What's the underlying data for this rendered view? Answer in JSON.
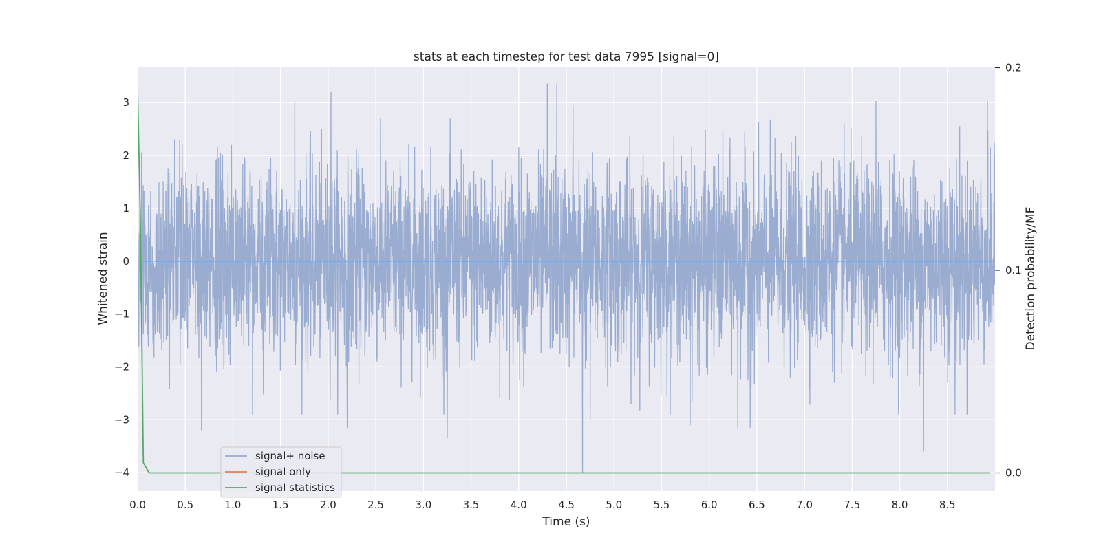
{
  "chart_data": {
    "type": "line",
    "title": "stats at each timestep for test data 7995 [signal=0]",
    "xlabel": "Time (s)",
    "ylabel_left": "Whitened strain",
    "ylabel_right": "Detection probability/MF",
    "xlim": [
      0.0,
      9.0
    ],
    "ylim_left": [
      -4.35,
      3.68
    ],
    "ylim_right": [
      -0.009,
      0.2005
    ],
    "x_ticks": [
      "0.0",
      "0.5",
      "1.0",
      "1.5",
      "2.0",
      "2.5",
      "3.0",
      "3.5",
      "4.0",
      "4.5",
      "5.0",
      "5.5",
      "6.0",
      "6.5",
      "7.0",
      "7.5",
      "8.0",
      "8.5"
    ],
    "y_ticks_left": [
      "3",
      "2",
      "1",
      "0",
      "−1",
      "−2",
      "−3",
      "−4"
    ],
    "y_ticks_right": [
      "0.2",
      "0.1",
      "0.0"
    ],
    "grid": true,
    "legend_position": "lower-left",
    "series": [
      {
        "name": "signal+ noise",
        "axis": "left",
        "color": "#9aaccf",
        "kind": "noise",
        "envelope": {
          "typical_abs": 1.4,
          "max": 3.36,
          "min": -4.0
        },
        "notable_peaks": [
          {
            "x": 0.0,
            "y": 3.3
          },
          {
            "x": 1.65,
            "y": 3.03
          },
          {
            "x": 2.03,
            "y": 3.2
          },
          {
            "x": 4.3,
            "y": 3.36
          },
          {
            "x": 4.4,
            "y": 3.36
          },
          {
            "x": 4.57,
            "y": 2.95
          },
          {
            "x": 7.75,
            "y": 3.03
          },
          {
            "x": 8.92,
            "y": 3.03
          }
        ],
        "notable_troughs": [
          {
            "x": 0.67,
            "y": -3.2
          },
          {
            "x": 2.2,
            "y": -3.15
          },
          {
            "x": 3.25,
            "y": -3.35
          },
          {
            "x": 4.67,
            "y": -4.0
          },
          {
            "x": 4.75,
            "y": -3.0
          },
          {
            "x": 5.8,
            "y": -3.1
          },
          {
            "x": 6.3,
            "y": -3.15
          },
          {
            "x": 6.43,
            "y": -3.15
          },
          {
            "x": 8.25,
            "y": -3.6
          },
          {
            "x": 8.58,
            "y": -2.9
          }
        ]
      },
      {
        "name": "signal only",
        "axis": "left",
        "color": "#dd8452",
        "x": [
          0.0,
          9.0
        ],
        "y": [
          0.0,
          0.0
        ]
      },
      {
        "name": "signal statistics",
        "axis": "right",
        "color": "#55a868",
        "x": [
          0.0,
          0.03,
          0.06,
          0.12,
          0.5,
          1.0,
          2.0,
          4.0,
          6.0,
          8.0,
          8.95
        ],
        "y": [
          0.19,
          0.12,
          0.005,
          0.0,
          0.0,
          0.0,
          0.0,
          0.0,
          0.0,
          0.0,
          0.0
        ]
      }
    ]
  }
}
